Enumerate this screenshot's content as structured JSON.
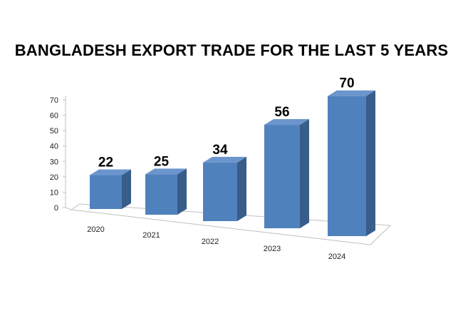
{
  "chart_data": {
    "type": "bar",
    "title": "BANGLADESH EXPORT TRADE FOR THE LAST 5 YEARS",
    "xlabel": "",
    "ylabel": "",
    "categories": [
      "2020",
      "2021",
      "2022",
      "2023",
      "2024"
    ],
    "values": [
      22,
      25,
      34,
      56,
      70
    ],
    "data_labels": [
      "22",
      "25",
      "34",
      "56",
      "70"
    ],
    "yticks": [
      "0",
      "10",
      "20",
      "30",
      "40",
      "50",
      "60",
      "70"
    ],
    "ylim": [
      0,
      70
    ],
    "grid": false,
    "legend": "none",
    "style": "3d-column",
    "colors": {
      "bar_front": "#4F81BD",
      "bar_side": "#385D8A",
      "bar_top": "#6B95CC"
    }
  }
}
